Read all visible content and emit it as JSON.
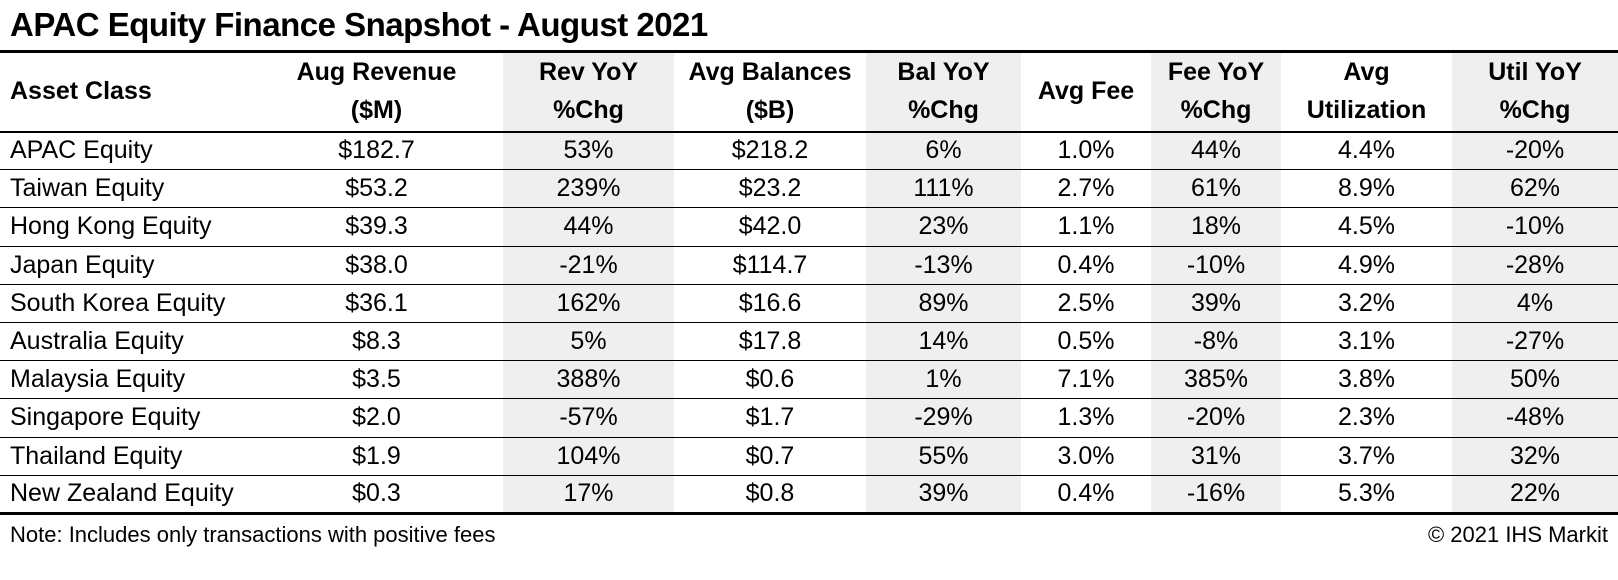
{
  "title": "APAC Equity Finance Snapshot - August 2021",
  "footer": {
    "note": "Note: Includes only transactions with positive fees",
    "copyright": "© 2021 IHS Markit"
  },
  "colors": {
    "text": "#000000",
    "background": "#ffffff",
    "border": "#000000",
    "yoy_column_bg": "#efefef"
  },
  "table": {
    "columns": [
      {
        "line1": "Asset Class",
        "line2": ""
      },
      {
        "line1": "Aug Revenue",
        "line2": "($M)"
      },
      {
        "line1": "Rev YoY",
        "line2": "%Chg"
      },
      {
        "line1": "Avg Balances",
        "line2": "($B)"
      },
      {
        "line1": "Bal YoY",
        "line2": "%Chg"
      },
      {
        "line1": "Avg Fee",
        "line2": ""
      },
      {
        "line1": "Fee YoY",
        "line2": "%Chg"
      },
      {
        "line1": "Avg",
        "line2": "Utilization"
      },
      {
        "line1": "Util YoY",
        "line2": "%Chg"
      }
    ]
  },
  "chart_data": {
    "type": "table",
    "title": "APAC Equity Finance Snapshot - August 2021",
    "columns": [
      "Asset Class",
      "Aug Revenue ($M)",
      "Rev YoY %Chg",
      "Avg Balances ($B)",
      "Bal YoY %Chg",
      "Avg Fee",
      "Fee YoY %Chg",
      "Avg Utilization",
      "Util YoY %Chg"
    ],
    "shaded_column_indexes": [
      2,
      4,
      6,
      8
    ],
    "rows": [
      [
        "APAC Equity",
        "$182.7",
        "53%",
        "$218.2",
        "6%",
        "1.0%",
        "44%",
        "4.4%",
        "-20%"
      ],
      [
        "Taiwan Equity",
        "$53.2",
        "239%",
        "$23.2",
        "111%",
        "2.7%",
        "61%",
        "8.9%",
        "62%"
      ],
      [
        "Hong Kong Equity",
        "$39.3",
        "44%",
        "$42.0",
        "23%",
        "1.1%",
        "18%",
        "4.5%",
        "-10%"
      ],
      [
        "Japan Equity",
        "$38.0",
        "-21%",
        "$114.7",
        "-13%",
        "0.4%",
        "-10%",
        "4.9%",
        "-28%"
      ],
      [
        "South Korea Equity",
        "$36.1",
        "162%",
        "$16.6",
        "89%",
        "2.5%",
        "39%",
        "3.2%",
        "4%"
      ],
      [
        "Australia Equity",
        "$8.3",
        "5%",
        "$17.8",
        "14%",
        "0.5%",
        "-8%",
        "3.1%",
        "-27%"
      ],
      [
        "Malaysia Equity",
        "$3.5",
        "388%",
        "$0.6",
        "1%",
        "7.1%",
        "385%",
        "3.8%",
        "50%"
      ],
      [
        "Singapore Equity",
        "$2.0",
        "-57%",
        "$1.7",
        "-29%",
        "1.3%",
        "-20%",
        "2.3%",
        "-48%"
      ],
      [
        "Thailand Equity",
        "$1.9",
        "104%",
        "$0.7",
        "55%",
        "3.0%",
        "31%",
        "3.7%",
        "32%"
      ],
      [
        "New Zealand Equity",
        "$0.3",
        "17%",
        "$0.8",
        "39%",
        "0.4%",
        "-16%",
        "5.3%",
        "22%"
      ]
    ],
    "note": "Note: Includes only transactions with positive fees",
    "source": "© 2021 IHS Markit"
  }
}
